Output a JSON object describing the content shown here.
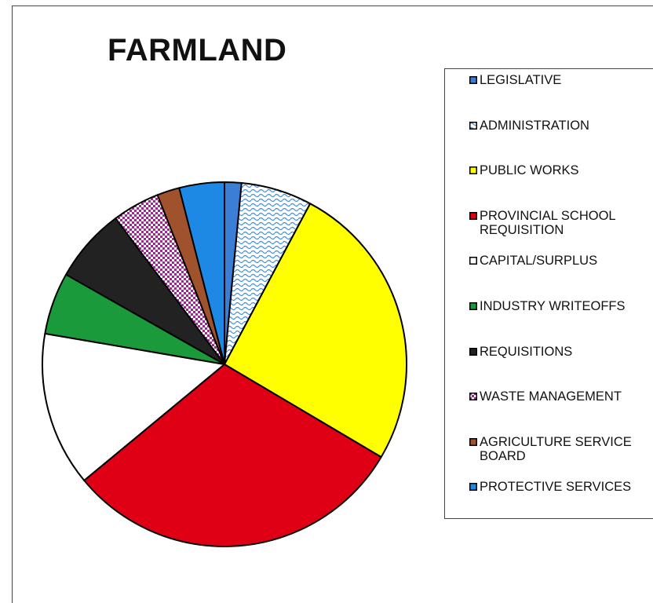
{
  "chart_data": {
    "type": "pie",
    "title": "FARMLAND",
    "categories": [
      "LEGISLATIVE",
      "ADMINISTRATION",
      "PUBLIC WORKS",
      "PROVINCIAL SCHOOL REQUISITION",
      "CAPITAL/SURPLUS",
      "INDUSTRY WRITEOFFS",
      "REQUISITIONS",
      "WASTE MANAGEMENT",
      "AGRICULTURE SERVICE BOARD",
      "PROTECTIVE SERVICES"
    ],
    "values": [
      1.5,
      6.3,
      25.7,
      30.5,
      13.7,
      5.5,
      6.6,
      4.2,
      2.0,
      4.0
    ],
    "colors": [
      "#3a7fd5",
      "#4a8fd8",
      "#ffff00",
      "#e00016",
      "#ffffff",
      "#1a9a3a",
      "#222222",
      "#9a2a8a",
      "#a0522d",
      "#1e88e5"
    ],
    "patterns": [
      null,
      "wave",
      null,
      null,
      null,
      null,
      null,
      "checker",
      null,
      null
    ],
    "legend": "right"
  }
}
